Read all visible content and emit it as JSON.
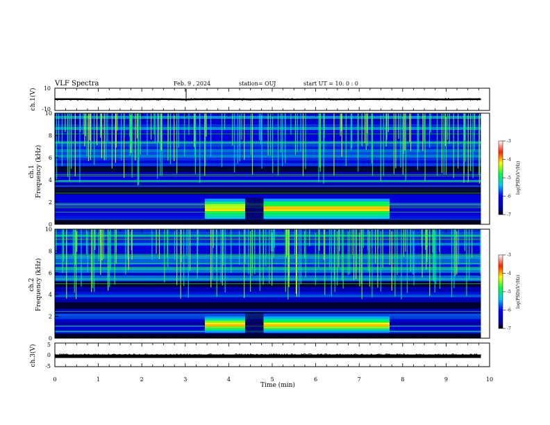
{
  "header": {
    "title": "VLF Spectra",
    "date": "Feb. 9 , 2024",
    "station": "station= OUJ",
    "start_ut": "start UT = 10: 0 : 0"
  },
  "chart_data": [
    {
      "type": "line",
      "panel": "ch1-waveform",
      "ylabel": "ch.1(V)",
      "ylim": [
        -10,
        10
      ],
      "yticks": [
        "10",
        "-10"
      ],
      "x": [
        0,
        0.5,
        1,
        1.5,
        2,
        2.5,
        3,
        3.5,
        4,
        4.5,
        5,
        5.5,
        6,
        6.5,
        7,
        7.5,
        8,
        8.5,
        9,
        9.5,
        9.8
      ],
      "y": [
        0.2,
        0.1,
        -0.1,
        0.2,
        0.0,
        0.1,
        -0.1,
        0.1,
        0.2,
        0.0,
        0.1,
        -0.1,
        0.1,
        0.0,
        0.1,
        0.2,
        0.0,
        0.1,
        -0.1,
        0.1,
        0.0
      ]
    },
    {
      "type": "heatmap",
      "panel": "ch1-spectrogram",
      "ylabel": "ch.1 Frequency (kHz)",
      "ylim": [
        0,
        10
      ],
      "yticks": [
        "0",
        "2",
        "4",
        "6",
        "8",
        "10"
      ],
      "xlim": [
        0,
        10
      ],
      "colorbar": {
        "label": "log(PSD)(V²/Hz)",
        "min": -7,
        "max": -3,
        "ticks": [
          "-3",
          "-4",
          "-5",
          "-6",
          "-7"
        ]
      },
      "enhancements": [
        {
          "t_start": 3.45,
          "t_end": 4.38,
          "f_low": 0.5,
          "f_high": 2.3,
          "log_psd": -4.0
        },
        {
          "t_start": 4.8,
          "t_end": 7.7,
          "f_low": 0.5,
          "f_high": 2.3,
          "log_psd": -4.0
        }
      ]
    },
    {
      "type": "heatmap",
      "panel": "ch2-spectrogram",
      "ylabel": "ch.2 Frequency (kHz)",
      "ylim": [
        0,
        10
      ],
      "yticks": [
        "0",
        "2",
        "4",
        "6",
        "8",
        "10"
      ],
      "xlim": [
        0,
        10
      ],
      "colorbar": {
        "label": "log(PSD)(V²/Hz)",
        "min": -7,
        "max": -3,
        "ticks": [
          "-3",
          "-4",
          "-5",
          "-6",
          "-7"
        ]
      },
      "enhancements": [
        {
          "t_start": 3.45,
          "t_end": 4.38,
          "f_low": 0.5,
          "f_high": 2.0,
          "log_psd": -4.0
        },
        {
          "t_start": 4.8,
          "t_end": 7.7,
          "f_low": 0.5,
          "f_high": 2.0,
          "log_psd": -4.0
        }
      ]
    },
    {
      "type": "line",
      "panel": "ch3-waveform",
      "ylabel": "ch.3(V)",
      "ylim": [
        -5,
        5
      ],
      "yticks": [
        "5",
        "0",
        "-5"
      ],
      "x": [
        0,
        9.8
      ],
      "y": [
        -0.6,
        -0.6
      ]
    }
  ],
  "xaxis": {
    "label": "Time (min)",
    "ticks": [
      "0",
      "1",
      "2",
      "3",
      "4",
      "5",
      "6",
      "7",
      "8",
      "9",
      "10"
    ]
  }
}
